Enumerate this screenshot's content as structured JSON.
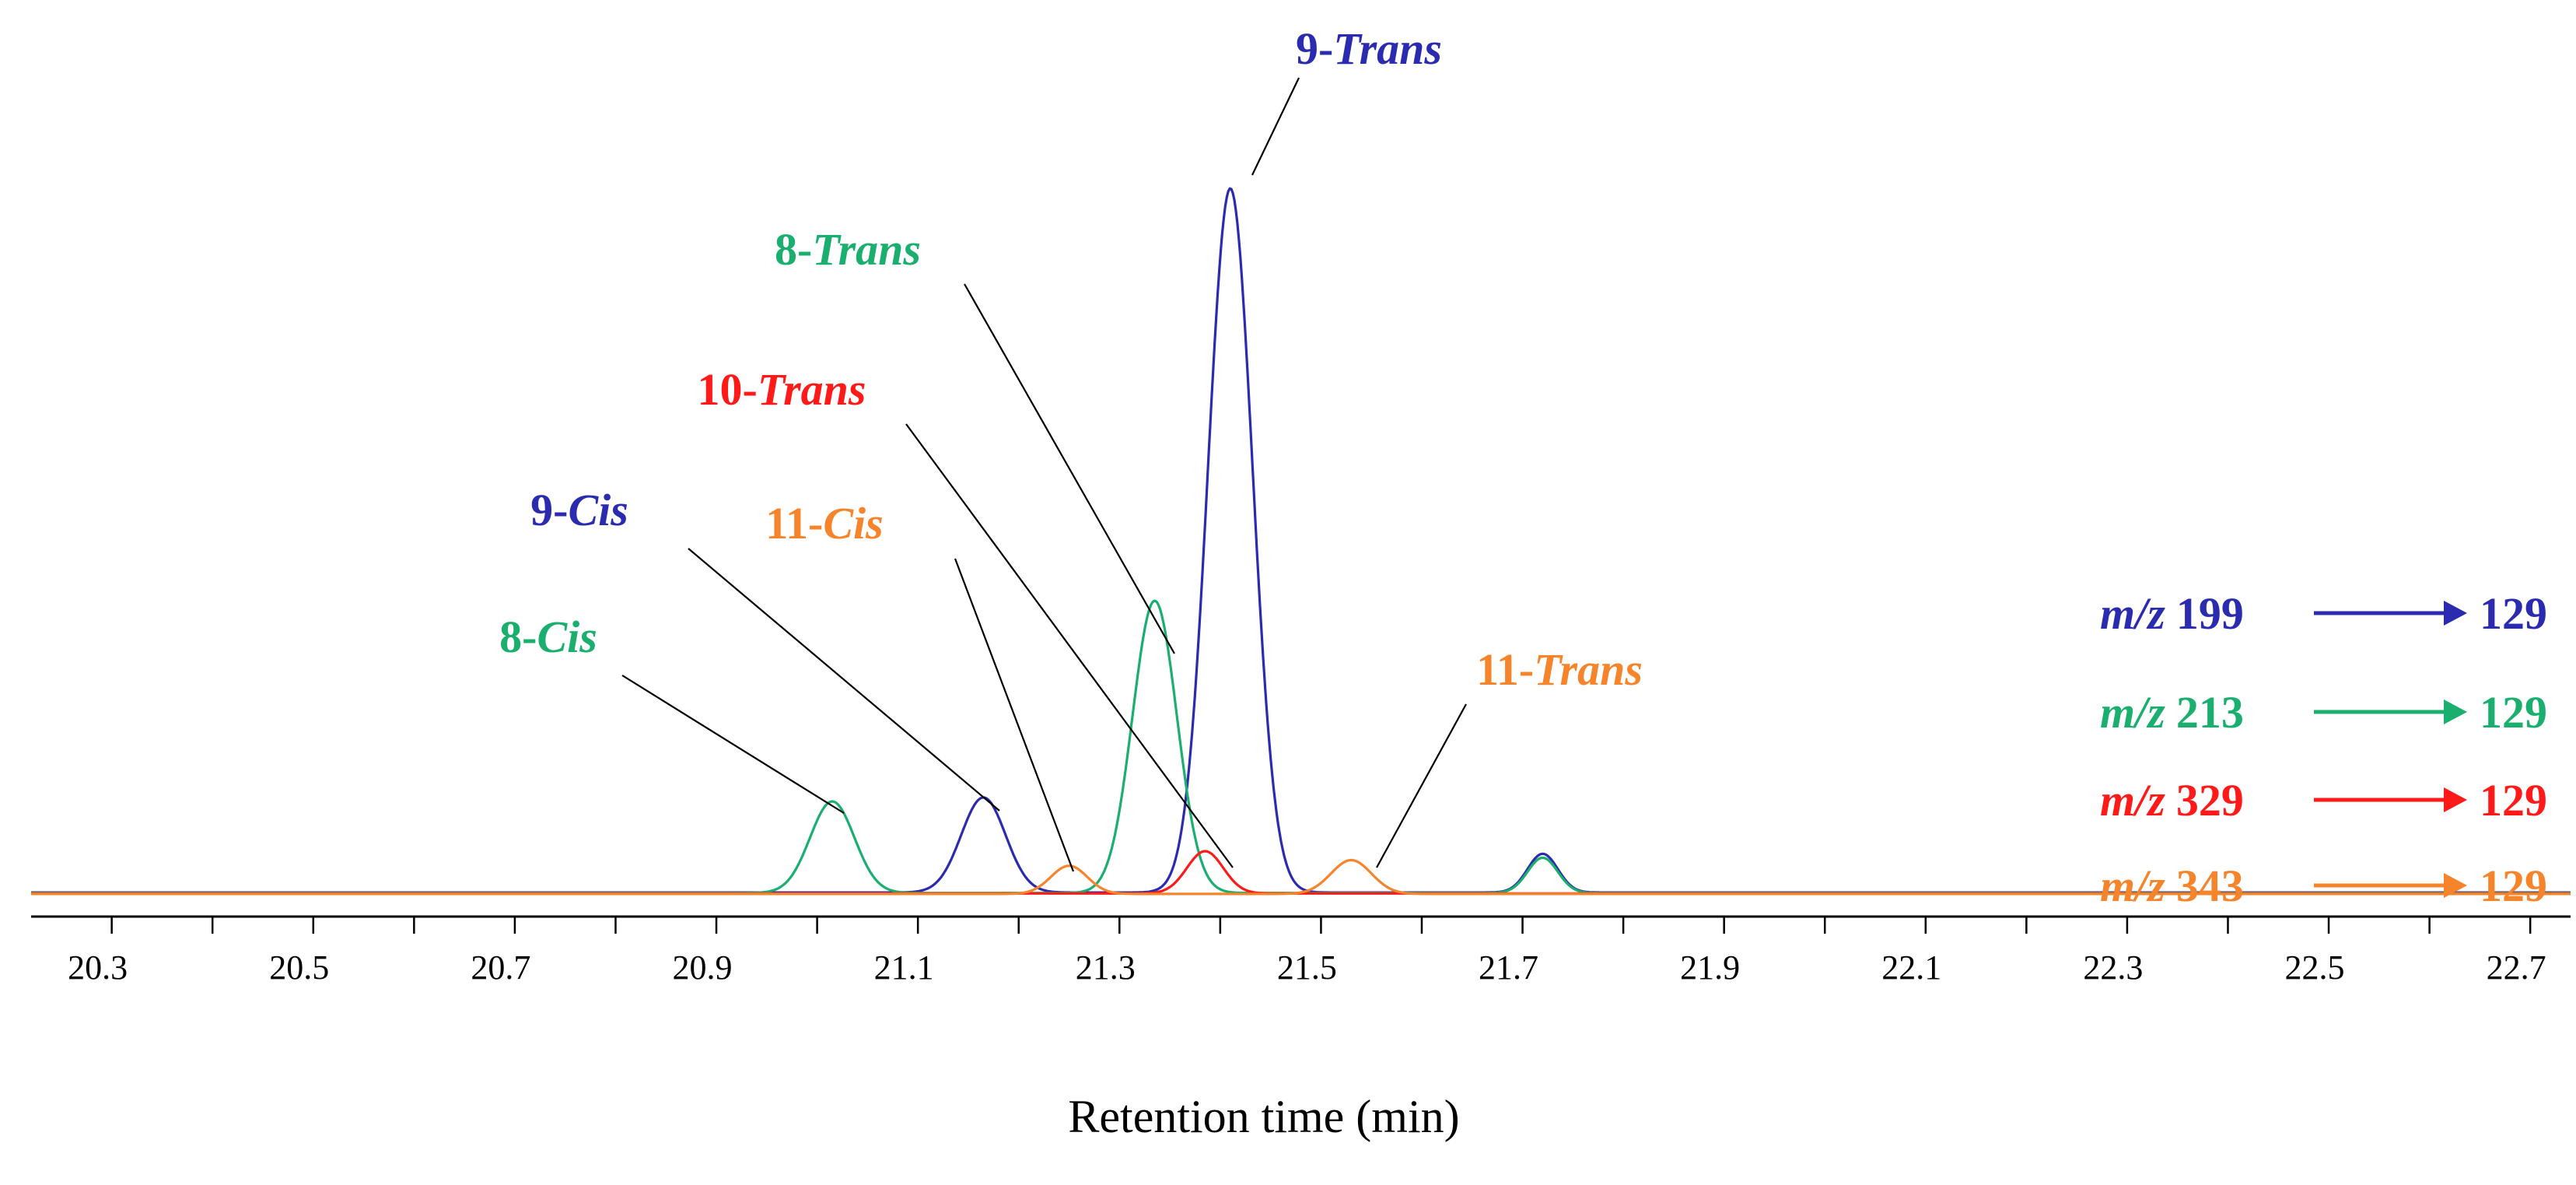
{
  "chart_data": {
    "type": "line",
    "title": "",
    "xlabel": "Retention time (min)",
    "ylabel": "",
    "xlim": [
      20.22,
      22.74
    ],
    "ylim": [
      0,
      100
    ],
    "grid": false,
    "x_ticks": [
      "20.3",
      "20.5",
      "20.7",
      "20.9",
      "21.1",
      "21.3",
      "21.5",
      "21.7",
      "21.9",
      "22.1",
      "22.3",
      "22.5",
      "22.7"
    ],
    "series": [
      {
        "name": "m/z 199 → 129",
        "color": "#2b2bb0",
        "peaks": [
          {
            "rt": 21.165,
            "height": 13.5,
            "sigma": 0.022
          },
          {
            "rt": 21.41,
            "height": 100,
            "sigma": 0.022
          },
          {
            "rt": 21.72,
            "height": 5.5,
            "sigma": 0.015
          }
        ]
      },
      {
        "name": "m/z 213 → 129",
        "color": "#1aaf6e",
        "peaks": [
          {
            "rt": 21.015,
            "height": 13.0,
            "sigma": 0.022
          },
          {
            "rt": 21.335,
            "height": 41.5,
            "sigma": 0.022
          },
          {
            "rt": 21.72,
            "height": 5.0,
            "sigma": 0.015
          }
        ]
      },
      {
        "name": "m/z 329 → 129",
        "color": "#ff1a1a",
        "peaks": [
          {
            "rt": 21.385,
            "height": 6.0,
            "sigma": 0.018
          }
        ]
      },
      {
        "name": "m/z 343 → 129",
        "color": "#f5842b",
        "peaks": [
          {
            "rt": 21.25,
            "height": 4.0,
            "sigma": 0.018
          },
          {
            "rt": 21.53,
            "height": 4.8,
            "sigma": 0.02
          }
        ]
      }
    ],
    "annotations": [
      {
        "num": "9-",
        "name": "Trans",
        "color": "#2b2bb0",
        "peak_rt": 21.41,
        "peak_height": 100
      },
      {
        "num": "8-",
        "name": "Trans",
        "color": "#1aaf6e",
        "peak_rt": 21.335,
        "peak_height": 41.5
      },
      {
        "num": "10-",
        "name": "Trans",
        "color": "#ff1a1a",
        "peak_rt": 21.385,
        "peak_height": 6.0
      },
      {
        "num": "9-",
        "name": "Cis",
        "color": "#2b2bb0",
        "peak_rt": 21.165,
        "peak_height": 13.5
      },
      {
        "num": "11-",
        "name": "Cis",
        "color": "#f5842b",
        "peak_rt": 21.25,
        "peak_height": 4.0
      },
      {
        "num": "8-",
        "name": "Cis",
        "color": "#1aaf6e",
        "peak_rt": 21.015,
        "peak_height": 13.0
      },
      {
        "num": "11-",
        "name": "Trans",
        "color": "#f5842b",
        "peak_rt": 21.53,
        "peak_height": 4.8
      }
    ],
    "legend": [
      {
        "prefix": "m/z",
        "precursor": "199",
        "product": "129",
        "color": "#2b2bb0"
      },
      {
        "prefix": "m/z",
        "precursor": "213",
        "product": "129",
        "color": "#1aaf6e"
      },
      {
        "prefix": "m/z",
        "precursor": "329",
        "product": "129",
        "color": "#ff1a1a"
      },
      {
        "prefix": "m/z",
        "precursor": "343",
        "product": "129",
        "color": "#f5842b"
      }
    ]
  }
}
